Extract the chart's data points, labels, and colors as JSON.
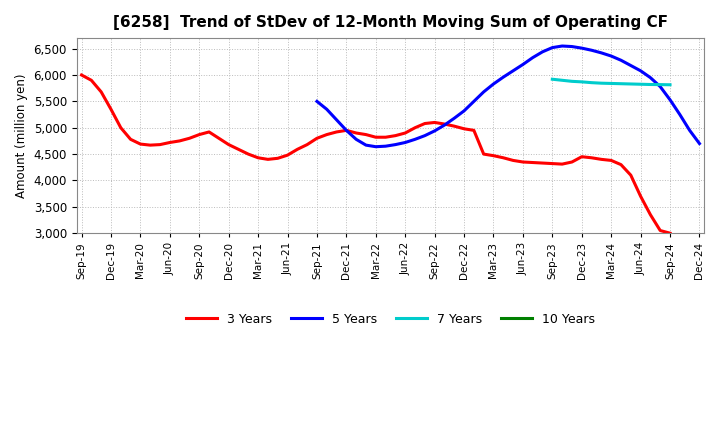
{
  "title": "[6258]  Trend of StDev of 12-Month Moving Sum of Operating CF",
  "ylabel": "Amount (million yen)",
  "ylim": [
    3000,
    6700
  ],
  "yticks": [
    3000,
    3500,
    4000,
    4500,
    5000,
    5500,
    6000,
    6500
  ],
  "background_color": "#ffffff",
  "grid_color": "#bbbbbb",
  "series": {
    "3years": {
      "color": "#ff0000",
      "label": "3 Years",
      "x": [
        0,
        1,
        2,
        3,
        4,
        5,
        6,
        7,
        8,
        9,
        10,
        11,
        12,
        13,
        14,
        15,
        16,
        17,
        18,
        19,
        20,
        21,
        22,
        23,
        24,
        25,
        26,
        27,
        28,
        29,
        30,
        31,
        32,
        33,
        34,
        35,
        36,
        37,
        38,
        39,
        40,
        41,
        42,
        43,
        44,
        45,
        46,
        47,
        48,
        49,
        50,
        51,
        52,
        53,
        54,
        55,
        56,
        57,
        58,
        59,
        60
      ],
      "y": [
        6000,
        5900,
        5680,
        5350,
        5000,
        4780,
        4690,
        4670,
        4680,
        4720,
        4750,
        4800,
        4870,
        4920,
        4800,
        4680,
        4590,
        4500,
        4430,
        4400,
        4420,
        4480,
        4590,
        4680,
        4800,
        4870,
        4920,
        4950,
        4900,
        4870,
        4820,
        4820,
        4850,
        4900,
        5000,
        5080,
        5100,
        5070,
        5030,
        4980,
        4950,
        4500,
        4470,
        4430,
        4380,
        4350,
        4340,
        4330,
        4320,
        4310,
        4350,
        4450,
        4430,
        4400,
        4380,
        4300,
        4100,
        3700,
        3350,
        3050,
        3000
      ]
    },
    "5years": {
      "color": "#0000ff",
      "label": "5 Years",
      "x": [
        24,
        25,
        26,
        27,
        28,
        29,
        30,
        31,
        32,
        33,
        34,
        35,
        36,
        37,
        38,
        39,
        40,
        41,
        42,
        43,
        44,
        45,
        46,
        47,
        48,
        49,
        50,
        51,
        52,
        53,
        54,
        55,
        56,
        57,
        58,
        59,
        60,
        61,
        62,
        63
      ],
      "y": [
        5500,
        5350,
        5150,
        4950,
        4780,
        4670,
        4640,
        4650,
        4680,
        4720,
        4780,
        4850,
        4940,
        5050,
        5180,
        5320,
        5500,
        5680,
        5830,
        5960,
        6080,
        6200,
        6330,
        6440,
        6520,
        6550,
        6540,
        6510,
        6470,
        6420,
        6360,
        6280,
        6180,
        6080,
        5950,
        5780,
        5530,
        5250,
        4950,
        4700
      ]
    },
    "7years": {
      "color": "#00cccc",
      "label": "7 Years",
      "x": [
        48,
        49,
        50,
        51,
        52,
        53,
        54,
        55,
        56,
        57,
        58,
        59,
        60
      ],
      "y": [
        5920,
        5900,
        5880,
        5870,
        5855,
        5845,
        5840,
        5835,
        5830,
        5825,
        5820,
        5818,
        5815
      ]
    },
    "10years": {
      "color": "#008000",
      "label": "10 Years",
      "x": [],
      "y": []
    }
  },
  "xtick_labels": [
    "Sep-19",
    "Dec-19",
    "Mar-20",
    "Jun-20",
    "Sep-20",
    "Dec-20",
    "Mar-21",
    "Jun-21",
    "Sep-21",
    "Dec-21",
    "Mar-22",
    "Jun-22",
    "Sep-22",
    "Dec-22",
    "Mar-23",
    "Jun-23",
    "Sep-23",
    "Dec-23",
    "Mar-24",
    "Jun-24",
    "Sep-24",
    "Dec-24"
  ],
  "xtick_positions": [
    0,
    3,
    6,
    9,
    12,
    15,
    18,
    21,
    24,
    27,
    30,
    33,
    36,
    39,
    42,
    45,
    48,
    51,
    54,
    57,
    60,
    63
  ]
}
